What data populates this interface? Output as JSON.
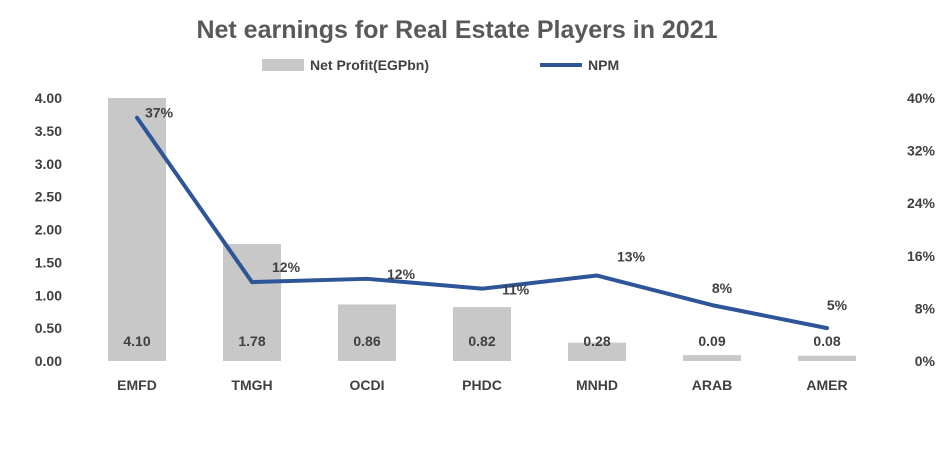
{
  "chart_data": {
    "type": "bar",
    "title": "Net earnings for Real Estate Players in 2021",
    "categories": [
      "EMFD",
      "TMGH",
      "OCDI",
      "PHDC",
      "MNHD",
      "ARAB",
      "AMER"
    ],
    "series": [
      {
        "name": "Net Profit(EGPbn)",
        "type": "bar",
        "axis": "left",
        "values": [
          4.1,
          1.78,
          0.86,
          0.82,
          0.28,
          0.09,
          0.08
        ],
        "labels": [
          "4.10",
          "1.78",
          "0.86",
          "0.82",
          "0.28",
          "0.09",
          "0.08"
        ]
      },
      {
        "name": "NPM",
        "type": "line",
        "axis": "right",
        "values": [
          37,
          12,
          12.5,
          11,
          13,
          8.5,
          5
        ],
        "labels": [
          "37%",
          "12%",
          "12%",
          "11%",
          "13%",
          "8%",
          "5%"
        ]
      }
    ],
    "y_left": {
      "min": 0,
      "max": 4.0,
      "ticks": [
        "0.00",
        "0.50",
        "1.00",
        "1.50",
        "2.00",
        "2.50",
        "3.00",
        "3.50",
        "4.00"
      ]
    },
    "y_right": {
      "min": 0,
      "max": 40,
      "ticks": [
        "0%",
        "8%",
        "16%",
        "24%",
        "32%",
        "40%"
      ]
    },
    "legend_position": "top-center",
    "colors": {
      "bar": "#c8c8c8",
      "line": "#2e5597",
      "text": "#404040",
      "title": "#595959"
    }
  }
}
